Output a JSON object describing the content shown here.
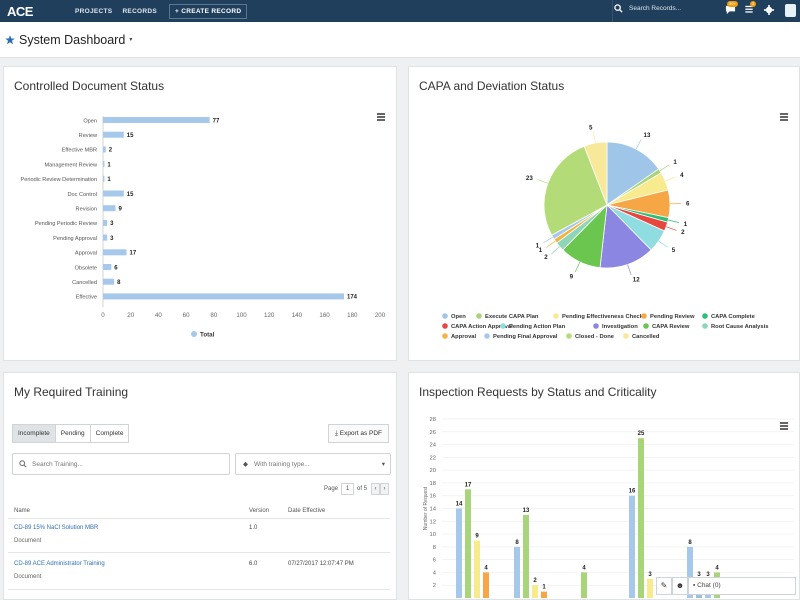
{
  "nav": {
    "logo": "ACE",
    "links": [
      "PROJECTS",
      "RECORDS"
    ],
    "create": "+ CREATE RECORD",
    "search_placeholder": "Search Records...",
    "chat_badge": "99+",
    "tasks_badge": "3"
  },
  "page": {
    "title": "System Dashboard"
  },
  "doc_panel": {
    "title": "Controlled Document Status"
  },
  "capa_panel": {
    "title": "CAPA and Deviation Status"
  },
  "training_panel": {
    "title": "My Required Training",
    "tabs": [
      "Incomplete",
      "Pending",
      "Complete"
    ],
    "active_tab": "Incomplete",
    "export_label": "Export as PDF",
    "search_placeholder": "Search Training...",
    "type_placeholder": "With training type...",
    "pager": {
      "label": "Page",
      "current": "1",
      "of": "of 5",
      "prev": "‹",
      "next": "›"
    },
    "columns": [
      "Name",
      "Version",
      "Date Effective"
    ],
    "rows": [
      {
        "name": "CD-89 15% NaCl Solution MBR",
        "type": "Document",
        "version": "1.0",
        "date": ""
      },
      {
        "name": "CD-89 ACE Administrator Training",
        "type": "Document",
        "version": "6.0",
        "date": "07/27/2017 12:07:47 PM"
      }
    ]
  },
  "inspection_panel": {
    "title": "Inspection Requests by Status and Criticality"
  },
  "chat": {
    "label": "Chat (0)"
  },
  "colors": {
    "nav": "#1f3f5c",
    "bar": "#a6c8ea",
    "link": "#2f6eb5"
  },
  "icons": {
    "star": "star-icon",
    "search": "search-icon",
    "chat": "chat-icon",
    "tasks": "tasks-icon",
    "settings": "gear-icon",
    "menu": "hamburger-icon",
    "export": "download-icon",
    "tag": "tag-icon"
  },
  "chart_data": [
    {
      "type": "bar",
      "orientation": "horizontal",
      "title": "Controlled Document Status",
      "categories": [
        "Open",
        "Review",
        "Effective MBR",
        "Management Review",
        "Periodic Review Determination",
        "Doc Control",
        "Revision",
        "Pending Periodic Review",
        "Pending Approval",
        "Approval",
        "Obsolete",
        "Cancelled",
        "Effective"
      ],
      "values": [
        77,
        15,
        2,
        1,
        1,
        15,
        9,
        3,
        3,
        17,
        6,
        8,
        174
      ],
      "series_name": "Total",
      "xticks": [
        0,
        20,
        40,
        60,
        80,
        100,
        120,
        140,
        160,
        180,
        200
      ],
      "xlim": [
        0,
        200
      ],
      "legend": "bottom",
      "color": "#a6c8ea"
    },
    {
      "type": "pie",
      "title": "CAPA and Deviation Status",
      "legend": "bottom",
      "slices": [
        {
          "label": "Open",
          "value": 13,
          "color": "#9fc6e8"
        },
        {
          "label": "Execute CAPA Plan",
          "value": 1,
          "color": "#a8d57a"
        },
        {
          "label": "Pending Effectiveness Check",
          "value": 4,
          "color": "#f8ea8f"
        },
        {
          "label": "Pending Review",
          "value": 6,
          "color": "#f7a646"
        },
        {
          "label": "CAPA Complete",
          "value": 1,
          "color": "#2bbf7a"
        },
        {
          "label": "CAPA Action Approval",
          "value": 2,
          "color": "#e8473f"
        },
        {
          "label": "Pending Action Plan",
          "value": 5,
          "color": "#8fdde0"
        },
        {
          "label": "Investigation",
          "value": 12,
          "color": "#8b86e2"
        },
        {
          "label": "CAPA Review",
          "value": 9,
          "color": "#6bc64f"
        },
        {
          "label": "Root Cause Analysis",
          "value": 2,
          "color": "#8fd6b8"
        },
        {
          "label": "Approval",
          "value": 1,
          "color": "#f2b444"
        },
        {
          "label": "Pending Final Approval",
          "value": 1,
          "color": "#a6c8ea"
        },
        {
          "label": "Closed - Done",
          "value": 23,
          "color": "#b3dc78"
        },
        {
          "label": "Cancelled",
          "value": 5,
          "color": "#f8e99a"
        }
      ]
    },
    {
      "type": "bar",
      "title": "Inspection Requests by Status and Criticality",
      "ylabel": "Number of Request",
      "ylim": [
        0,
        28
      ],
      "yticks": [
        2,
        4,
        6,
        8,
        10,
        12,
        14,
        16,
        18,
        20,
        22,
        24,
        26,
        28
      ],
      "groups": [
        {
          "values": [
            14,
            17,
            9,
            4
          ],
          "colors": [
            "#a6c8ea",
            "#a8d57a",
            "#f8ea8f",
            "#f7a646"
          ]
        },
        {
          "values": [
            8,
            13,
            2,
            1
          ],
          "colors": [
            "#a6c8ea",
            "#a8d57a",
            "#f8ea8f",
            "#f7a646"
          ]
        },
        {
          "values": [
            4
          ],
          "colors": [
            "#a8d57a"
          ]
        },
        {
          "values": [
            16,
            25,
            3
          ],
          "colors": [
            "#a6c8ea",
            "#a8d57a",
            "#f8ea8f"
          ]
        },
        {
          "values": [
            8,
            3,
            3,
            4
          ],
          "colors": [
            "#a6c8ea",
            "#9ebedb",
            "#a6c8ea",
            "#a8d57a"
          ]
        }
      ]
    }
  ]
}
